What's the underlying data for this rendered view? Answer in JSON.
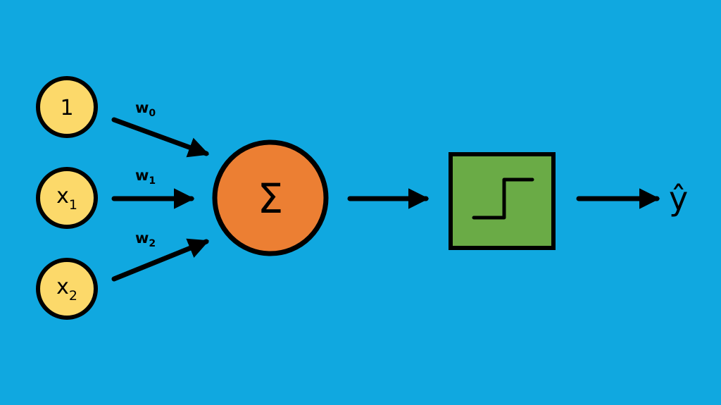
{
  "background_color": "#10a8e0",
  "colors": {
    "input_node": "#fcd96a",
    "sum_node": "#ec7f33",
    "activation_node": "#6aab46",
    "stroke": "#000000"
  },
  "inputs": [
    {
      "base": "1",
      "sub": ""
    },
    {
      "base": "x",
      "sub": "1"
    },
    {
      "base": "x",
      "sub": "2"
    }
  ],
  "weights": [
    {
      "base": "w",
      "sub": "0"
    },
    {
      "base": "w",
      "sub": "1"
    },
    {
      "base": "w",
      "sub": "2"
    }
  ],
  "sum_node": {
    "symbol": "Σ"
  },
  "activation_node": {
    "icon": "step-function-icon"
  },
  "output": {
    "label": "ŷ"
  }
}
